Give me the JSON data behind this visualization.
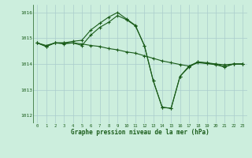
{
  "title": "Graphe pression niveau de la mer (hPa)",
  "background_color": "#cceedd",
  "grid_color": "#aacccc",
  "line_color": "#1a5c1a",
  "x_ticks": [
    0,
    1,
    2,
    3,
    4,
    5,
    6,
    7,
    8,
    9,
    10,
    11,
    12,
    13,
    14,
    15,
    16,
    17,
    18,
    19,
    20,
    21,
    22,
    23
  ],
  "ylim": [
    1011.7,
    1016.3
  ],
  "yticks": [
    1012,
    1013,
    1014,
    1015,
    1016
  ],
  "series1": {
    "x": [
      0,
      1,
      2,
      3,
      4,
      5,
      6,
      7,
      8,
      9,
      10,
      11,
      12,
      13,
      14,
      15,
      16,
      17,
      18,
      19,
      20,
      21,
      22,
      23
    ],
    "y": [
      1014.82,
      1014.72,
      1014.82,
      1014.82,
      1014.82,
      1014.78,
      1014.72,
      1014.68,
      1014.6,
      1014.55,
      1014.47,
      1014.42,
      1014.32,
      1014.22,
      1014.12,
      1014.05,
      1013.98,
      1013.92,
      1014.05,
      1014.02,
      1014.0,
      1013.97,
      1014.0,
      1014.0
    ]
  },
  "series2": {
    "x": [
      0,
      1,
      2,
      3,
      4,
      5,
      6,
      7,
      8,
      9,
      10,
      11,
      12,
      13,
      14,
      15,
      16,
      17,
      18,
      19,
      20,
      21,
      22,
      23
    ],
    "y": [
      1014.82,
      1014.68,
      1014.82,
      1014.78,
      1014.82,
      1014.72,
      1015.12,
      1015.42,
      1015.62,
      1015.88,
      1015.72,
      1015.48,
      1014.72,
      1013.35,
      1012.32,
      1012.28,
      1013.52,
      1013.92,
      1014.08,
      1014.02,
      1013.97,
      1013.88,
      1014.0,
      1014.0
    ]
  },
  "series3": {
    "x": [
      0,
      1,
      2,
      3,
      4,
      5,
      6,
      7,
      8,
      9,
      10,
      11,
      12,
      13,
      14,
      15,
      16,
      17,
      18,
      19,
      20,
      21,
      22,
      23
    ],
    "y": [
      1014.82,
      1014.68,
      1014.82,
      1014.82,
      1014.88,
      1014.92,
      1015.32,
      1015.58,
      1015.82,
      1016.0,
      1015.75,
      1015.5,
      1014.72,
      1013.35,
      1012.32,
      1012.28,
      1013.52,
      1013.88,
      1014.08,
      1014.05,
      1014.0,
      1013.9,
      1014.0,
      1014.0
    ]
  }
}
